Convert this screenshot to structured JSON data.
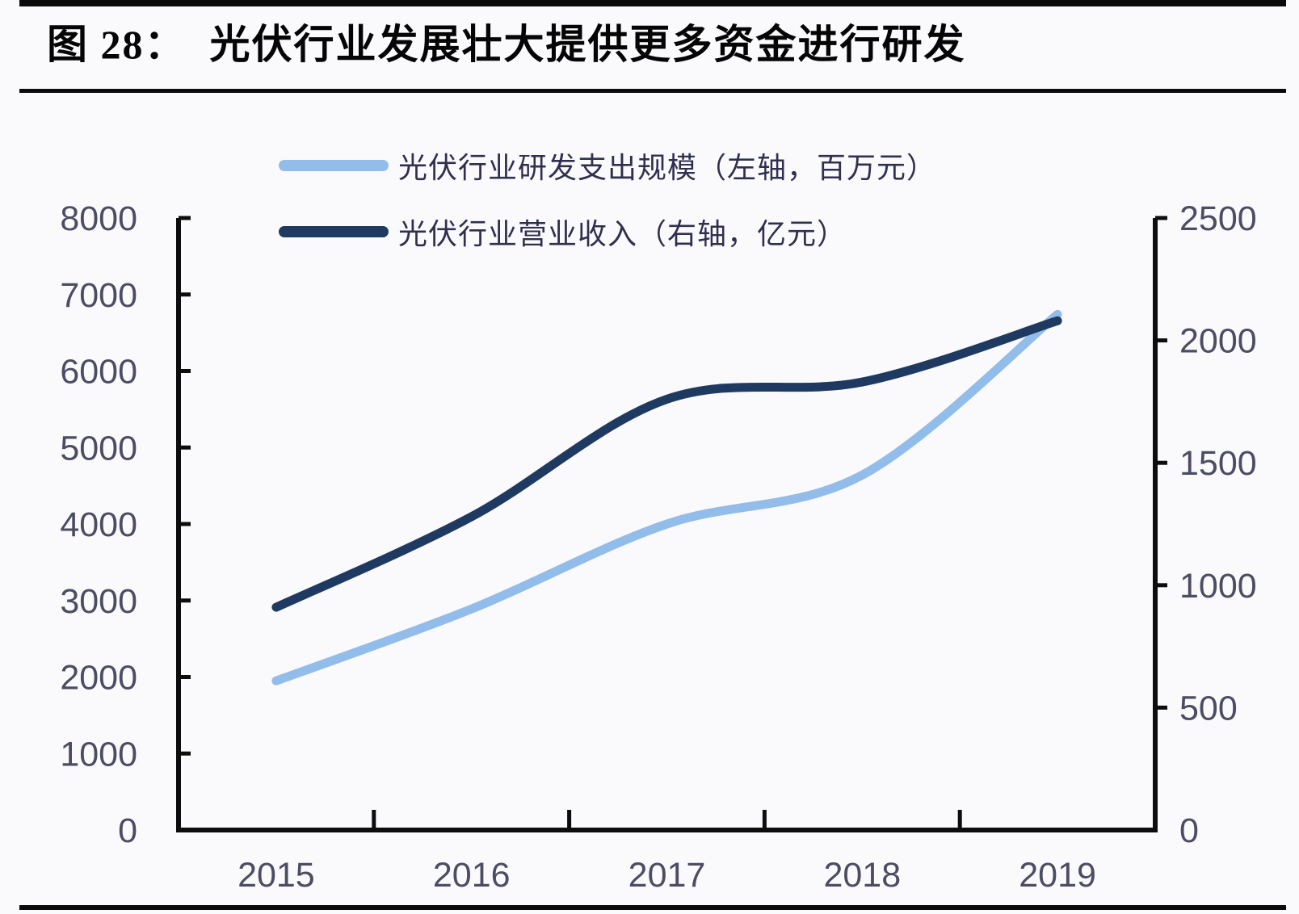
{
  "header": {
    "title": "图 28：  光伏行业发展壮大提供更多资金进行研发"
  },
  "chart_data": {
    "type": "line",
    "smooth": true,
    "grid": false,
    "legend_position": "top-center",
    "title": "图 28：  光伏行业发展壮大提供更多资金进行研发",
    "categories": [
      "2015",
      "2016",
      "2017",
      "2018",
      "2019"
    ],
    "series": [
      {
        "name": "光伏行业研发支出规模（左轴，百万元）",
        "axis": "left",
        "color": "#92BDEA",
        "values": [
          1950,
          2890,
          4000,
          4640,
          6740
        ]
      },
      {
        "name": "光伏行业营业收入（右轴，亿元）",
        "axis": "right",
        "color": "#1F3A60",
        "values": [
          910,
          1280,
          1760,
          1830,
          2080
        ]
      }
    ],
    "left_axis": {
      "min": 0,
      "max": 8000,
      "step": 1000,
      "tick_labels": [
        "0",
        "1000",
        "2000",
        "3000",
        "4000",
        "5000",
        "6000",
        "7000",
        "8000"
      ]
    },
    "right_axis": {
      "min": 0,
      "max": 2500,
      "step": 500,
      "tick_labels": [
        "0",
        "500",
        "1000",
        "1500",
        "2000",
        "2500"
      ]
    }
  },
  "style": {
    "background": "#fafafd",
    "axis_color": "#0d0d0d",
    "tick_label_color": "#4c4c63",
    "legend_text_color": "#30304e",
    "title_color": "#050505"
  }
}
